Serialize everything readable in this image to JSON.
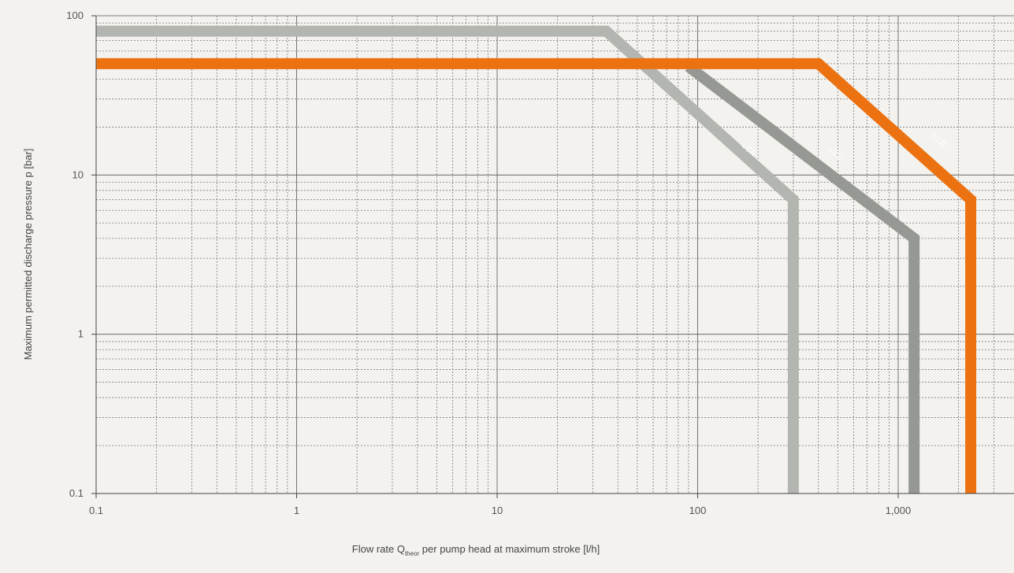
{
  "chart_data": {
    "type": "line",
    "title": "",
    "xlabel": {
      "main": "Flow rate Q",
      "subscript": "theor",
      "rest": " per pump head at maximum stroke [l/h]"
    },
    "ylabel": "Maximum permitted discharge pressure p [bar]",
    "xscale": "log",
    "yscale": "log",
    "xlim": [
      0.1,
      5000
    ],
    "ylim": [
      0.1,
      100
    ],
    "xticks": [
      {
        "value": 0.1,
        "label": "0.1"
      },
      {
        "value": 1,
        "label": "1"
      },
      {
        "value": 10,
        "label": "10"
      },
      {
        "value": 100,
        "label": "100"
      },
      {
        "value": 1000,
        "label": "1,000"
      }
    ],
    "yticks": [
      {
        "value": 0.1,
        "label": "0.1"
      },
      {
        "value": 1,
        "label": "1"
      },
      {
        "value": 10,
        "label": "10"
      },
      {
        "value": 100,
        "label": "100"
      }
    ],
    "grid": true,
    "legend": "none",
    "series": [
      {
        "name": "LCA",
        "color": "#b3b6b0",
        "points": [
          [
            0.1,
            80
          ],
          [
            35,
            80
          ],
          [
            300,
            7
          ],
          [
            300,
            0.1
          ]
        ],
        "label_at": [
          180,
          14.5
        ]
      },
      {
        "name": "LCC",
        "color": "#969993",
        "points": [
          [
            90,
            48
          ],
          [
            1200,
            4
          ],
          [
            1200,
            0.1
          ]
        ],
        "label_at": [
          490,
          13.5
        ]
      },
      {
        "name": "LCD",
        "color": "#ec7211",
        "points": [
          [
            0.1,
            50
          ],
          [
            400,
            50
          ],
          [
            2300,
            7
          ],
          [
            2300,
            0.1
          ]
        ],
        "label_at": [
          1600,
          16.5
        ]
      }
    ]
  }
}
